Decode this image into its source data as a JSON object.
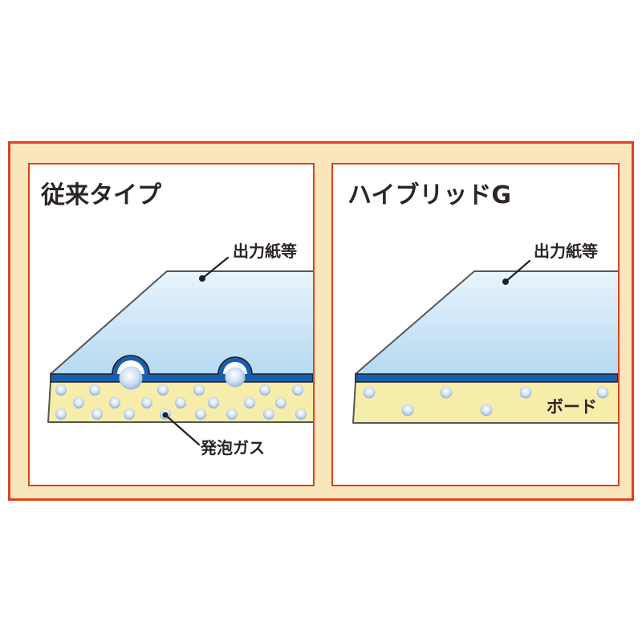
{
  "colors": {
    "frame_red": "#df421e",
    "frame_cream": "#fae6bd",
    "panel_bg": "#ffffff",
    "text_dark": "#2b2523",
    "paper_top": "#e9f4fc",
    "paper_bottom": "#b5daf2",
    "adhesive_blue": "#1a5fae",
    "board_yellow": "#f7edaa",
    "bubble_blue": "#7fa3d6",
    "outline_gray": "#55565a",
    "line_black": "#231f20"
  },
  "panels": [
    {
      "id": "conventional",
      "title": "従来タイプ",
      "paper_label": "出力紙等",
      "gas_label": "発泡ガス",
      "figure": {
        "bubble_r": 7,
        "bubbles": [
          [
            39,
            281
          ],
          [
            81,
            281
          ],
          [
            166,
            281
          ],
          [
            211,
            281
          ],
          [
            293,
            281
          ],
          [
            334,
            281
          ],
          [
            61,
            297
          ],
          [
            106,
            297
          ],
          [
            146,
            297
          ],
          [
            188,
            297
          ],
          [
            229,
            297
          ],
          [
            274,
            297
          ],
          [
            313,
            297
          ],
          [
            39,
            311
          ],
          [
            84,
            311
          ],
          [
            124,
            311
          ],
          [
            169,
            311
          ],
          [
            213,
            311
          ],
          [
            252,
            311
          ],
          [
            298,
            311
          ],
          [
            338,
            311
          ]
        ]
      }
    },
    {
      "id": "hybrid-g",
      "title": "ハイブリッドG",
      "paper_label": "出力紙等",
      "board_label": "ボード",
      "figure": {
        "bubble_r": 7.5,
        "bubbles": [
          [
            45,
            284
          ],
          [
            141,
            284
          ],
          [
            240,
            284
          ],
          [
            336,
            284
          ],
          [
            93,
            306
          ],
          [
            191,
            306
          ]
        ]
      }
    }
  ]
}
